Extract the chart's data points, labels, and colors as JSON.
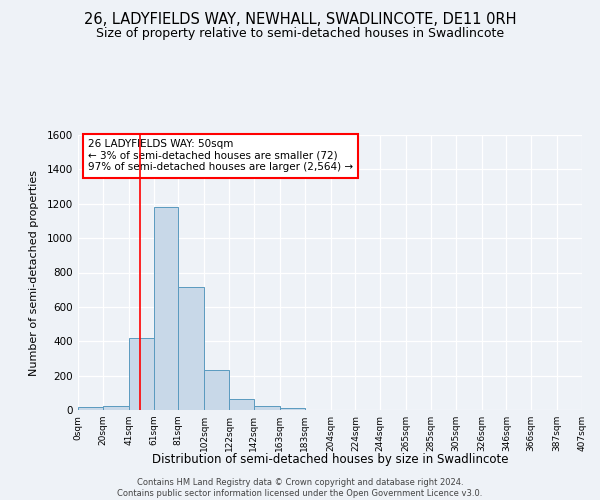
{
  "title": "26, LADYFIELDS WAY, NEWHALL, SWADLINCOTE, DE11 0RH",
  "subtitle": "Size of property relative to semi-detached houses in Swadlincote",
  "xlabel": "Distribution of semi-detached houses by size in Swadlincote",
  "ylabel": "Number of semi-detached properties",
  "footer_line1": "Contains HM Land Registry data © Crown copyright and database right 2024.",
  "footer_line2": "Contains public sector information licensed under the Open Government Licence v3.0.",
  "annotation_line1": "26 LADYFIELDS WAY: 50sqm",
  "annotation_line2": "← 3% of semi-detached houses are smaller (72)",
  "annotation_line3": "97% of semi-detached houses are larger (2,564) →",
  "bar_color": "#c8d8e8",
  "bar_edge_color": "#5a9abf",
  "red_line_x": 50,
  "bin_edges": [
    0,
    20,
    41,
    61,
    81,
    102,
    122,
    142,
    163,
    183,
    204,
    224,
    244,
    265,
    285,
    305,
    326,
    346,
    366,
    387,
    407
  ],
  "bar_heights": [
    15,
    25,
    420,
    1180,
    715,
    230,
    65,
    25,
    10,
    0,
    0,
    0,
    0,
    0,
    0,
    0,
    0,
    0,
    0,
    0
  ],
  "ylim": [
    0,
    1600
  ],
  "yticks": [
    0,
    200,
    400,
    600,
    800,
    1000,
    1200,
    1400,
    1600
  ],
  "background_color": "#eef2f7",
  "grid_color": "#ffffff",
  "title_fontsize": 10.5,
  "subtitle_fontsize": 9
}
